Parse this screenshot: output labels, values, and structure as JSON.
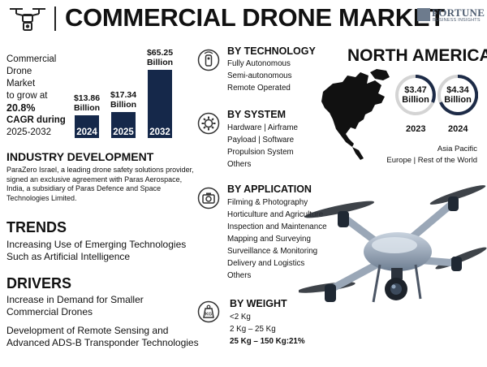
{
  "header": {
    "title": "COMMERCIAL DRONE MARKET"
  },
  "brand": {
    "line1": "FORTUNE",
    "line2": "BUSINESS INSIGHTS"
  },
  "intro": {
    "line1": "Commercial Drone",
    "line2": "Market",
    "line3": "to grow at",
    "rate": "20.8%",
    "line5": "CAGR during",
    "line6": "2025-2032"
  },
  "chart_data": {
    "type": "bar",
    "categories": [
      "2024",
      "2025",
      "2032"
    ],
    "values": [
      13.86,
      17.34,
      65.25
    ],
    "value_labels": [
      [
        "$13.86",
        "Billion"
      ],
      [
        "$17.34",
        "Billion"
      ],
      [
        "$65.25",
        "Billion"
      ]
    ],
    "title": "",
    "xlabel": "",
    "ylabel": ""
  },
  "industry": {
    "heading": "INDUSTRY DEVELOPMENT",
    "lines": [
      "ParaZero Israel, a leading drone safety solutions provider,",
      "signed an exclusive agreement with Paras Aerospace,",
      "India, a subsidiary of Paras Defence and Space",
      "Technologies Limited."
    ]
  },
  "trends": {
    "heading": "TRENDS",
    "lines": [
      "Increasing Use of Emerging Technologies",
      "Such as Artificial Intelligence"
    ]
  },
  "drivers": {
    "heading": "DRIVERS",
    "items": [
      [
        "Increase in Demand for Smaller",
        "Commercial Drones"
      ],
      [
        "Development of Remote Sensing and",
        "Advanced ADS-B Transponder Technologies"
      ]
    ]
  },
  "segments": [
    {
      "heading": "BY TECHNOLOGY",
      "icon": "remote-control-icon",
      "items": [
        "Fully Autonomous",
        "Semi-autonomous",
        "Remote Operated"
      ]
    },
    {
      "heading": "BY SYSTEM",
      "icon": "gear-icon",
      "items": [
        "Hardware  |  Airframe",
        "Payload  |  Software",
        "Propulsion System",
        "Others"
      ]
    },
    {
      "heading": "BY APPLICATION",
      "icon": "camera-icon",
      "items": [
        "Filming & Photography",
        "Horticulture and Agriculture",
        "Inspection and Maintenance",
        "Mapping and Surveying",
        "Surveillance & Monitoring",
        "Delivery and Logistics",
        "Others"
      ]
    },
    {
      "heading": "BY WEIGHT",
      "icon": "weight-icon",
      "icon_text": "KG",
      "items": [
        "<2 Kg",
        "2 Kg – 25 Kg",
        "25 Kg – 150 Kg:21%"
      ]
    }
  ],
  "region": {
    "heading": "NORTH AMERICA",
    "values": [
      {
        "amount": "$3.47",
        "unit": "Billion",
        "year": "2023"
      },
      {
        "amount": "$4.34",
        "unit": "Billion",
        "year": "2024"
      }
    ],
    "others_line1": "Asia Pacific",
    "others_line2": "Europe  |  Rest of the World"
  },
  "colors": {
    "bar": "#15284a",
    "ring_accent": "#1d2b47",
    "ring_track": "#d4d4d4"
  }
}
